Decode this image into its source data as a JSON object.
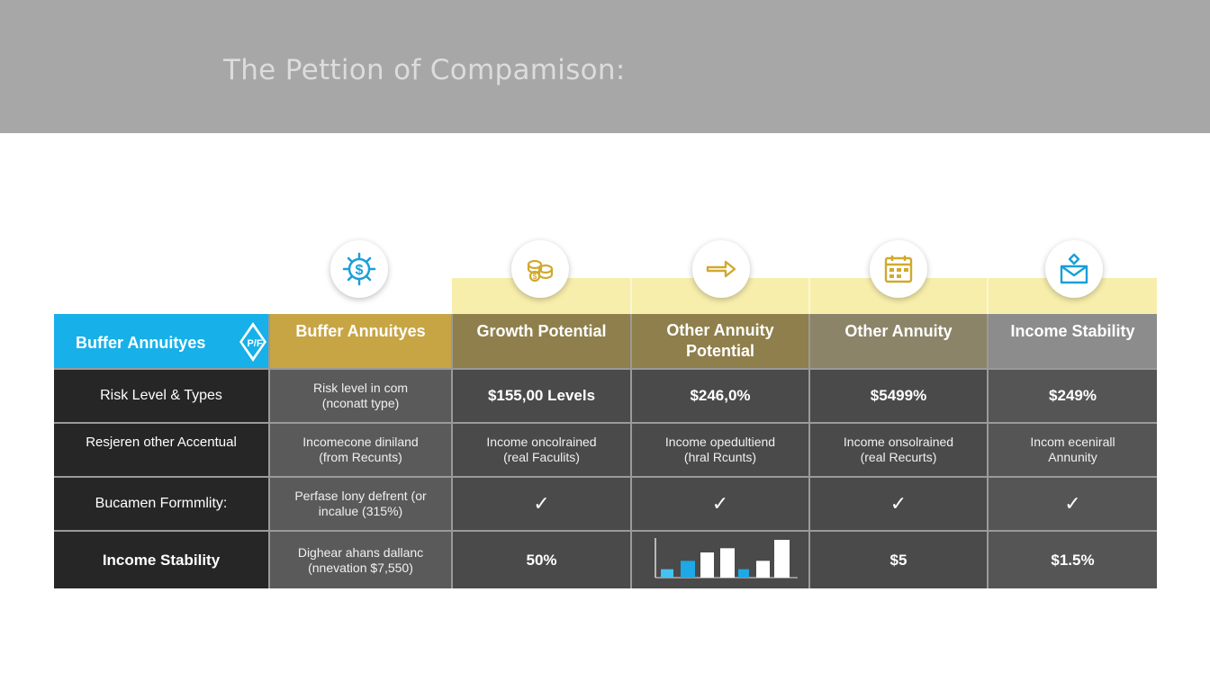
{
  "banner": {
    "title": "The Pettion of Compamison:"
  },
  "icons": {
    "col1": "dollar-gear-icon",
    "col2": "coins-icon",
    "col3": "arrow-right-icon",
    "col4": "calendar-icon",
    "col5": "envelope-person-icon"
  },
  "colors": {
    "blue": "#17b0e8",
    "gold": "#c7a544",
    "olive": "#8f7f4c",
    "gray_header": "#8c8c8c",
    "dark": "#262626",
    "mid": "#5a5a5a",
    "pale_yellow": "#f7eeac"
  },
  "table": {
    "badge": "P/F",
    "headers": [
      "Buffer Annuityes",
      "Buffer Annuityes",
      "Growth Potential",
      "Other Annuity Potential",
      "Other Annuity",
      "Income Stability"
    ],
    "rows": [
      {
        "label": "Risk Level & Types",
        "cells": [
          "Risk level in com (nconatt type)",
          "$155,00 Levels",
          "$246,0%",
          "$5499%",
          "$249%"
        ]
      },
      {
        "label": "Resjeren other Accentual",
        "cells": [
          "Incomecone diniland (from Recunts)",
          "Income oncolrained (real Faculits)",
          "Income opedultiend (hral Rcunts)",
          "Income onsolrained (real Recurts)",
          "Incom ecenirall Annunity"
        ]
      },
      {
        "label": "Bucamen Formmlity:",
        "cells": [
          "Perfase lony defrent (or incalue (315%)",
          "✓",
          "✓",
          "✓",
          "✓"
        ]
      },
      {
        "label": "Income Stability",
        "cells": [
          "Dighear ahans dallanc (nnevation $7,550)",
          "50%",
          "",
          "$5",
          "$1.5%"
        ]
      }
    ]
  },
  "mini_chart": {
    "type": "bar",
    "values": [
      2,
      4,
      6,
      7,
      2,
      4,
      9
    ],
    "colors": [
      "#44c3f0",
      "#1ea8e6",
      "#ffffff",
      "#ffffff",
      "#1ea8e6",
      "#ffffff",
      "#ffffff"
    ]
  }
}
